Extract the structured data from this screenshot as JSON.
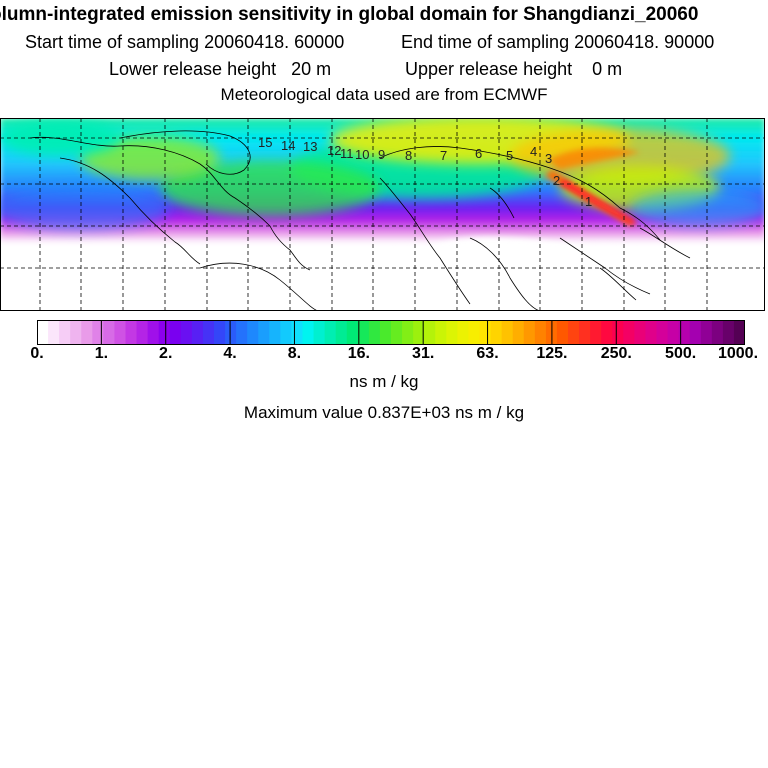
{
  "header": {
    "title": "olumn-integrated emission sensitivity in global domain for Shangdianzi_20060",
    "start_time": "Start time of sampling 20060418. 60000",
    "end_time": "End time of sampling 20060418. 90000",
    "lower_height": "Lower release height   20 m",
    "upper_height": "Upper release height    0 m",
    "met_data": "Meteorological data used are from ECMWF"
  },
  "map": {
    "transport_labels": [
      "15",
      "14",
      "13",
      "12",
      "11",
      "10",
      "9",
      "8",
      "7",
      "6",
      "5",
      "4",
      "3",
      "2",
      "1"
    ]
  },
  "colorbar": {
    "tick_labels": [
      "0.",
      "1.",
      "2.",
      "4.",
      "8.",
      "16.",
      "31.",
      "63.",
      "125.",
      "250.",
      "500.",
      "1000."
    ],
    "tick_values": [
      0,
      1,
      2,
      4,
      8,
      16,
      31,
      63,
      125,
      250,
      500,
      1000
    ],
    "colors": [
      "#ffffff",
      "#fbe6fb",
      "#f6cdf6",
      "#efb4ef",
      "#e99be9",
      "#e082e8",
      "#d76be6",
      "#cf52e4",
      "#c338e4",
      "#b424e6",
      "#a010ea",
      "#8c00ee",
      "#7a00f0",
      "#6a10f2",
      "#5820f4",
      "#4632f6",
      "#3446f8",
      "#2a5cfa",
      "#2472fc",
      "#1e88fd",
      "#1a9efd",
      "#16b4fd",
      "#12cafd",
      "#10e0fd",
      "#00f4f0",
      "#00f0d0",
      "#00eeb2",
      "#00ec94",
      "#00ea76",
      "#16e85a",
      "#30e840",
      "#4aea2c",
      "#66ec20",
      "#82ee16",
      "#9cf00e",
      "#b4f20a",
      "#caf406",
      "#dcf404",
      "#ecf202",
      "#f8ee00",
      "#ffe400",
      "#ffd400",
      "#ffc200",
      "#ffae00",
      "#ff9800",
      "#ff8200",
      "#ff6c00",
      "#ff5800",
      "#ff4410",
      "#ff3020",
      "#ff1a30",
      "#ff0840",
      "#fc0050",
      "#f40064",
      "#ea0078",
      "#e0008a",
      "#d4009a",
      "#c600a6",
      "#b600ae",
      "#a400b0",
      "#900096",
      "#7c0080",
      "#68006a",
      "#540054"
    ],
    "units": "ns m / kg"
  },
  "footer": {
    "max_value": "Maximum value  0.837E+03 ns m / kg"
  }
}
